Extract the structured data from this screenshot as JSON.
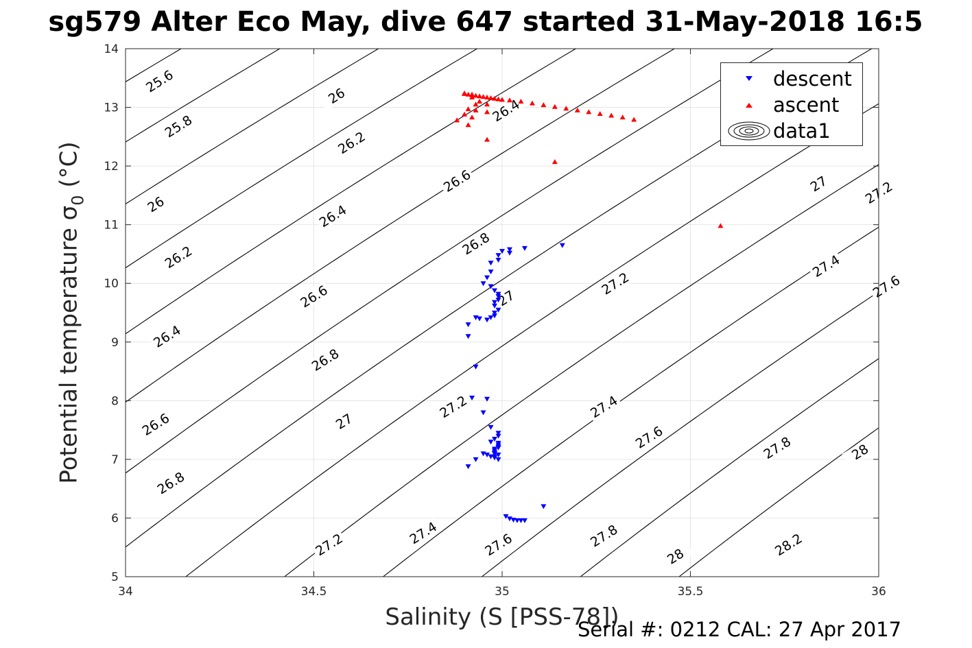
{
  "title": "sg579 Alter Eco May, dive 647 started 31-May-2018 16:5",
  "xlabel": "Salinity (S [PSS-78])",
  "ylabel_main": "Potential temperature ",
  "ylabel_symbol": "σ",
  "ylabel_sub": "0",
  "ylabel_unit": " (°C)",
  "footer": "Serial #: 0212  CAL: 27 Apr 2017",
  "colors": {
    "descent": "#0000ff",
    "ascent": "#ff0000",
    "contour": "#000000",
    "grid": "#e6e6e6",
    "axis": "#262626"
  },
  "chart_data": {
    "type": "scatter",
    "title": "sg579 Alter Eco May, dive 647 started 31-May-2018 16:5",
    "xlabel": "Salinity (S [PSS-78])",
    "ylabel": "Potential temperature σ0 (°C)",
    "xlim": [
      34,
      36
    ],
    "ylim": [
      5,
      14
    ],
    "xticks": [
      "34",
      "34.5",
      "35",
      "35.5",
      "36"
    ],
    "yticks": [
      "5",
      "6",
      "7",
      "8",
      "9",
      "10",
      "11",
      "12",
      "13",
      "14"
    ],
    "grid": true,
    "legend_position": "top-right",
    "legend": [
      "descent",
      "ascent",
      "data1"
    ],
    "contour_levels": [
      "25.6",
      "25.8",
      "26",
      "26.2",
      "26.4",
      "26.6",
      "26.8",
      "27",
      "27.2",
      "27.4",
      "27.6",
      "27.8",
      "28",
      "28.2"
    ],
    "contour_labels": [
      {
        "text": "25.6",
        "x": 34.09,
        "y": 13.45
      },
      {
        "text": "25.8",
        "x": 34.14,
        "y": 12.68
      },
      {
        "text": "26",
        "x": 34.08,
        "y": 11.35
      },
      {
        "text": "26.2",
        "x": 34.14,
        "y": 10.45
      },
      {
        "text": "26.4",
        "x": 34.11,
        "y": 9.1
      },
      {
        "text": "26.6",
        "x": 34.08,
        "y": 7.6
      },
      {
        "text": "26.8",
        "x": 34.12,
        "y": 6.6
      },
      {
        "text": "26",
        "x": 34.56,
        "y": 13.2
      },
      {
        "text": "26.2",
        "x": 34.6,
        "y": 12.4
      },
      {
        "text": "26.4",
        "x": 34.55,
        "y": 11.15
      },
      {
        "text": "26.6",
        "x": 34.5,
        "y": 9.78
      },
      {
        "text": "26.8",
        "x": 34.53,
        "y": 8.7
      },
      {
        "text": "27",
        "x": 34.58,
        "y": 7.65
      },
      {
        "text": "27.2",
        "x": 34.54,
        "y": 5.55
      },
      {
        "text": "26.4",
        "x": 35.01,
        "y": 12.95
      },
      {
        "text": "26.6",
        "x": 34.88,
        "y": 11.75
      },
      {
        "text": "26.8",
        "x": 34.93,
        "y": 10.68
      },
      {
        "text": "27",
        "x": 35.01,
        "y": 9.75
      },
      {
        "text": "27.2",
        "x": 34.87,
        "y": 7.9
      },
      {
        "text": "27.4",
        "x": 34.79,
        "y": 5.75
      },
      {
        "text": "27.6",
        "x": 34.99,
        "y": 5.55
      },
      {
        "text": "26.6",
        "x": 35.84,
        "y": 13.57
      },
      {
        "text": "26.8",
        "x": 35.87,
        "y": 12.62
      },
      {
        "text": "27",
        "x": 35.84,
        "y": 11.7
      },
      {
        "text": "27.2",
        "x": 35.3,
        "y": 10.0
      },
      {
        "text": "27.4",
        "x": 35.27,
        "y": 7.9
      },
      {
        "text": "27.6",
        "x": 35.39,
        "y": 7.38
      },
      {
        "text": "27.8",
        "x": 35.27,
        "y": 5.7
      },
      {
        "text": "28",
        "x": 35.46,
        "y": 5.35
      },
      {
        "text": "27.2",
        "x": 36.0,
        "y": 11.55
      },
      {
        "text": "27.4",
        "x": 35.86,
        "y": 10.3
      },
      {
        "text": "27.6",
        "x": 36.02,
        "y": 9.95
      },
      {
        "text": "27.8",
        "x": 35.73,
        "y": 7.2
      },
      {
        "text": "28",
        "x": 35.95,
        "y": 7.13
      },
      {
        "text": "28.2",
        "x": 35.76,
        "y": 5.55
      }
    ],
    "series": [
      {
        "name": "descent",
        "marker": "triangle-down",
        "color": "#0000ff",
        "x": [
          35.16,
          35.06,
          35.02,
          35.0,
          35.02,
          34.99,
          34.99,
          34.97,
          34.97,
          34.96,
          34.95,
          34.97,
          34.98,
          34.99,
          34.99,
          34.99,
          34.98,
          34.98,
          34.99,
          34.98,
          34.98,
          34.97,
          34.96,
          34.94,
          34.93,
          34.91,
          34.91,
          34.93,
          34.92,
          34.95,
          34.96,
          34.97,
          34.99,
          34.99,
          34.98,
          34.97,
          34.99,
          34.99,
          34.98,
          34.98,
          34.98,
          34.99,
          34.98,
          34.99,
          34.98,
          34.98,
          34.99,
          34.99,
          34.98,
          34.97,
          34.96,
          34.95,
          34.93,
          34.91,
          35.11,
          35.01,
          35.02,
          35.03,
          35.04,
          35.05,
          35.06
        ],
        "y": [
          10.65,
          10.6,
          10.58,
          10.55,
          10.52,
          10.48,
          10.4,
          10.35,
          10.2,
          10.1,
          10.0,
          9.95,
          9.88,
          9.82,
          9.78,
          9.72,
          9.68,
          9.62,
          9.55,
          9.5,
          9.45,
          9.42,
          9.38,
          9.4,
          9.42,
          9.3,
          9.1,
          8.58,
          8.05,
          7.8,
          8.03,
          7.55,
          7.45,
          7.4,
          7.35,
          7.3,
          7.25,
          7.2,
          7.15,
          7.1,
          7.05,
          7.0,
          7.03,
          7.08,
          7.12,
          7.18,
          7.22,
          7.28,
          7.1,
          7.05,
          7.08,
          7.1,
          7.0,
          6.88,
          6.2,
          6.03,
          5.99,
          5.97,
          5.96,
          5.96,
          5.96
        ]
      },
      {
        "name": "ascent",
        "marker": "triangle-up",
        "color": "#ff0000",
        "x": [
          35.58,
          35.14,
          34.96,
          34.88,
          34.9,
          34.91,
          34.91,
          34.92,
          34.93,
          34.93,
          34.94,
          34.96,
          34.96,
          34.92,
          34.92,
          34.9,
          34.9,
          34.91,
          34.92,
          34.93,
          34.94,
          34.95,
          34.96,
          34.97,
          34.98,
          34.99,
          35.0,
          35.02,
          35.05,
          35.08,
          35.11,
          35.14,
          35.17,
          35.2,
          35.23,
          35.26,
          35.29,
          35.32,
          35.35
        ],
        "y": [
          10.98,
          12.07,
          12.45,
          12.78,
          12.88,
          12.7,
          12.97,
          12.83,
          12.95,
          13.05,
          13.1,
          12.92,
          13.05,
          13.17,
          13.22,
          13.24,
          13.23,
          13.22,
          13.21,
          13.2,
          13.19,
          13.18,
          13.17,
          13.16,
          13.15,
          13.14,
          13.13,
          13.12,
          13.1,
          13.07,
          13.04,
          13.01,
          12.98,
          12.95,
          12.92,
          12.89,
          12.86,
          12.83,
          12.79
        ]
      }
    ]
  }
}
